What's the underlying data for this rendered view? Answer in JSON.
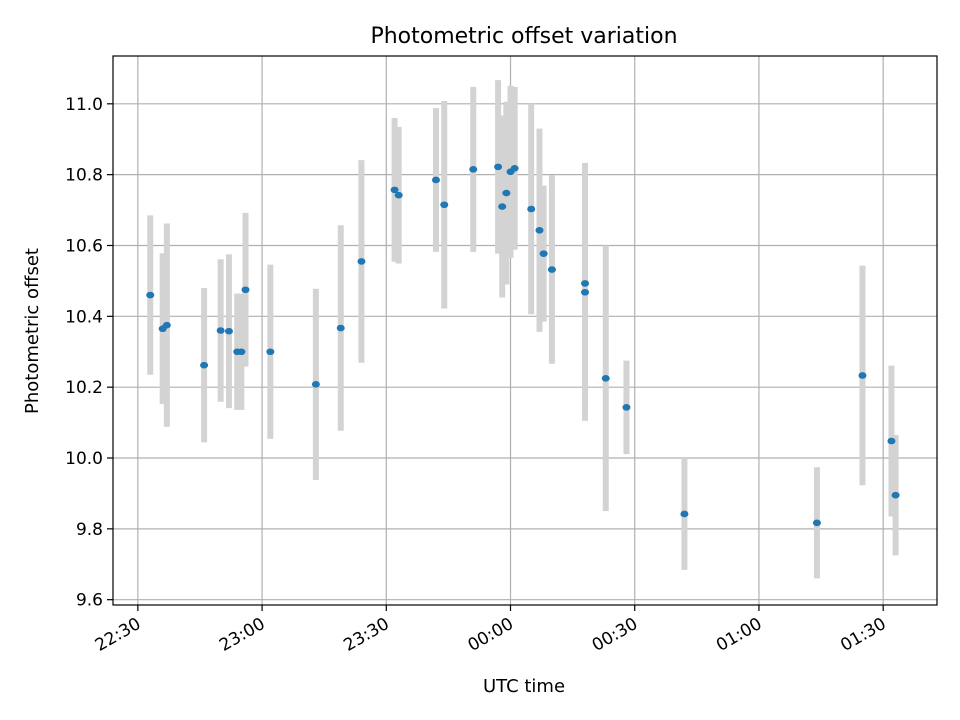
{
  "chart_data": {
    "type": "scatter",
    "title": "Photometric offset variation",
    "xlabel": "UTC time",
    "ylabel": "Photometric offset",
    "x_ticks": [
      "22:30",
      "23:00",
      "23:30",
      "00:00",
      "00:30",
      "01:00",
      "01:30"
    ],
    "y_ticks": [
      "9.6",
      "9.8",
      "10.0",
      "10.2",
      "10.4",
      "10.6",
      "10.8",
      "11.0"
    ],
    "x_axis_type": "time",
    "x_range": [
      "22:24",
      "01:43"
    ],
    "ylim": [
      9.585,
      11.135
    ],
    "grid": true,
    "legend": "none",
    "colors": {
      "point": "#1f77b4",
      "errorbar": "#d3d3d3",
      "grid": "#b0b0b0"
    },
    "points": [
      {
        "time": "22:33",
        "y": 10.46,
        "yerr": 0.225
      },
      {
        "time": "22:36",
        "y": 10.365,
        "yerr": 0.213
      },
      {
        "time": "22:37",
        "y": 10.375,
        "yerr": 0.287
      },
      {
        "time": "22:46",
        "y": 10.262,
        "yerr": 0.218
      },
      {
        "time": "22:50",
        "y": 10.36,
        "yerr": 0.201
      },
      {
        "time": "22:52",
        "y": 10.358,
        "yerr": 0.217
      },
      {
        "time": "22:54",
        "y": 10.3,
        "yerr": 0.164
      },
      {
        "time": "22:55",
        "y": 10.3,
        "yerr": 0.164
      },
      {
        "time": "22:56",
        "y": 10.475,
        "yerr": 0.217
      },
      {
        "time": "23:02",
        "y": 10.3,
        "yerr": 0.246
      },
      {
        "time": "23:13",
        "y": 10.208,
        "yerr": 0.27
      },
      {
        "time": "23:19",
        "y": 10.367,
        "yerr": 0.29
      },
      {
        "time": "23:24",
        "y": 10.555,
        "yerr": 0.286
      },
      {
        "time": "23:32",
        "y": 10.757,
        "yerr": 0.203
      },
      {
        "time": "23:33",
        "y": 10.742,
        "yerr": 0.193
      },
      {
        "time": "23:42",
        "y": 10.785,
        "yerr": 0.203
      },
      {
        "time": "23:44",
        "y": 10.715,
        "yerr": 0.293
      },
      {
        "time": "23:51",
        "y": 10.815,
        "yerr": 0.233
      },
      {
        "time": "23:57",
        "y": 10.822,
        "yerr": 0.245
      },
      {
        "time": "23:58",
        "y": 10.71,
        "yerr": 0.257
      },
      {
        "time": "23:59",
        "y": 10.748,
        "yerr": 0.258
      },
      {
        "time": "00:00",
        "y": 10.808,
        "yerr": 0.243
      },
      {
        "time": "00:01",
        "y": 10.818,
        "yerr": 0.23
      },
      {
        "time": "00:05",
        "y": 10.703,
        "yerr": 0.297
      },
      {
        "time": "00:07",
        "y": 10.643,
        "yerr": 0.287
      },
      {
        "time": "00:08",
        "y": 10.577,
        "yerr": 0.192
      },
      {
        "time": "00:10",
        "y": 10.532,
        "yerr": 0.266
      },
      {
        "time": "00:18",
        "y": 10.493,
        "yerr": 0.34
      },
      {
        "time": "00:18",
        "y": 10.468,
        "yerr": 0.363
      },
      {
        "time": "00:23",
        "y": 10.225,
        "yerr": 0.375
      },
      {
        "time": "00:28",
        "y": 10.143,
        "yerr": 0.132
      },
      {
        "time": "00:42",
        "y": 9.842,
        "yerr": 0.158
      },
      {
        "time": "01:14",
        "y": 9.817,
        "yerr": 0.157
      },
      {
        "time": "01:25",
        "y": 10.233,
        "yerr": 0.31
      },
      {
        "time": "01:32",
        "y": 10.048,
        "yerr": 0.213
      },
      {
        "time": "01:33",
        "y": 9.895,
        "yerr": 0.17
      }
    ]
  }
}
